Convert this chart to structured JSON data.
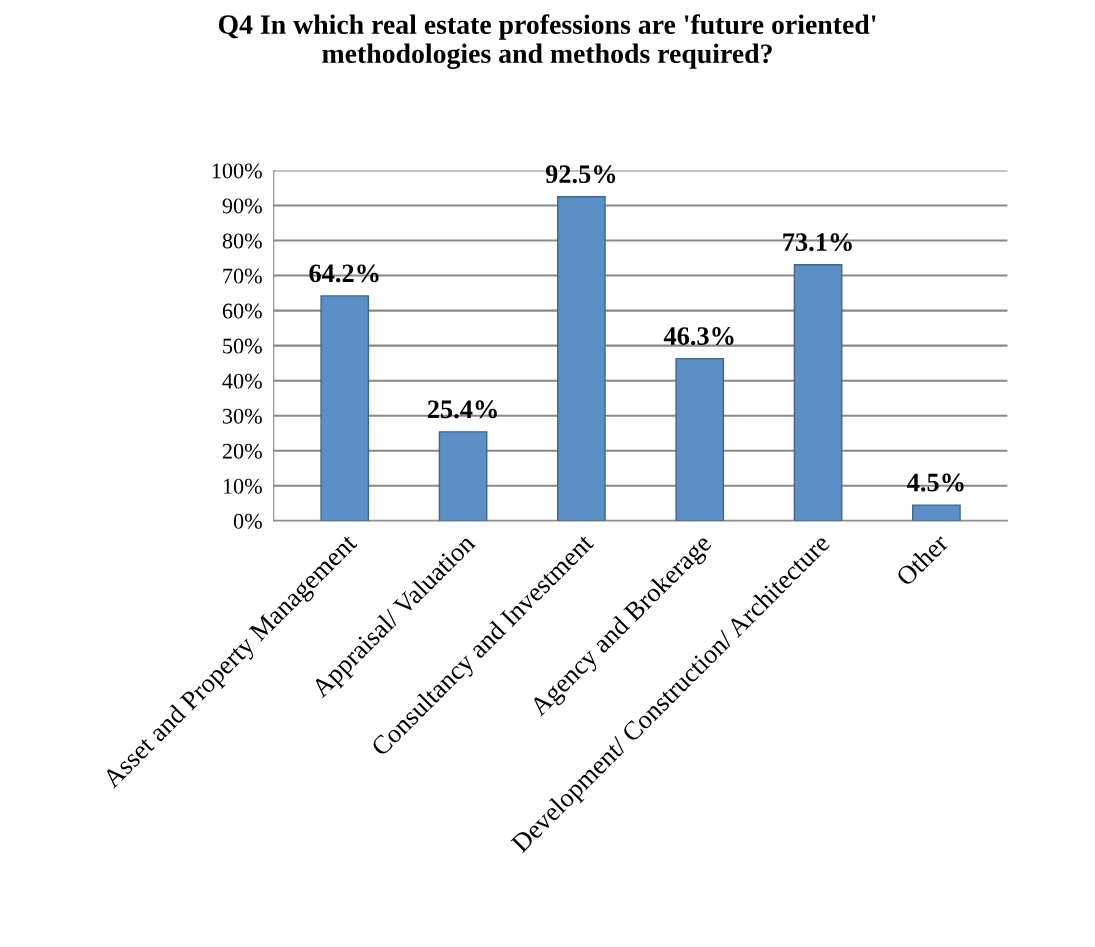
{
  "chart_data": {
    "type": "bar",
    "title": "Q4 In which real estate professions are 'future oriented'\nmethodologies and methods required?",
    "categories": [
      "Asset and Property Management",
      "Appraisal/ Valuation",
      "Consultancy and Investment",
      "Agency and Brokerage",
      "Development/ Construction/ Architecture",
      "Other"
    ],
    "values": [
      64.2,
      25.4,
      92.5,
      46.3,
      73.1,
      4.5
    ],
    "value_labels": [
      "64.2%",
      "25.4%",
      "92.5%",
      "46.3%",
      "73.1%",
      "4.5%"
    ],
    "color": "#5b8fc6",
    "ylim": [
      0,
      100
    ],
    "yticks": [
      {
        "value": 0,
        "label": "0%"
      },
      {
        "value": 10,
        "label": "10%"
      },
      {
        "value": 20,
        "label": "20%"
      },
      {
        "value": 30,
        "label": "30%"
      },
      {
        "value": 40,
        "label": "40%"
      },
      {
        "value": 50,
        "label": "50%"
      },
      {
        "value": 60,
        "label": "60%"
      },
      {
        "value": 70,
        "label": "70%"
      },
      {
        "value": 80,
        "label": "80%"
      },
      {
        "value": 90,
        "label": "90%"
      },
      {
        "value": 100,
        "label": "100%"
      }
    ],
    "grid": "y"
  }
}
